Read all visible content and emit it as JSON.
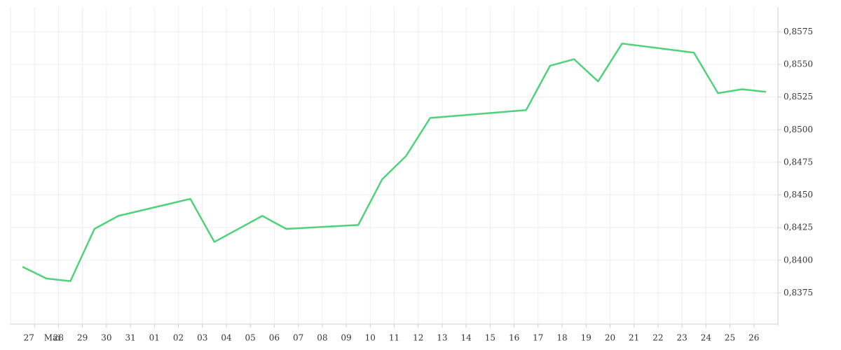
{
  "chart_data": {
    "type": "line",
    "categories": [
      null,
      "27",
      "28",
      "29",
      "30",
      "31",
      "01",
      "02",
      "03",
      "04",
      "05",
      "06",
      "07",
      "08",
      "09",
      "10",
      "11",
      "12",
      "13",
      "14",
      "15",
      "16",
      "17",
      "18",
      "19",
      "20",
      "21",
      "22",
      "23",
      "24",
      "25",
      "26"
    ],
    "month_label": "Mai",
    "series": [
      {
        "color": "#4fd37a",
        "values": [
          0.8395,
          0.8386,
          0.8384,
          0.8424,
          0.8434,
          null,
          null,
          0.8447,
          0.8414,
          null,
          0.8434,
          0.8424,
          null,
          null,
          0.8427,
          0.8462,
          0.848,
          0.8509,
          null,
          null,
          null,
          0.8515,
          0.8549,
          0.8554,
          0.8537,
          0.8566,
          null,
          null,
          0.8559,
          0.8528,
          0.8531,
          0.8529
        ]
      }
    ],
    "connect_gaps": true,
    "ylim": [
      0.835,
      0.8594
    ],
    "yticks": [
      {
        "value": 0.8375,
        "label": "0,8375"
      },
      {
        "value": 0.84,
        "label": "0,8400"
      },
      {
        "value": 0.8425,
        "label": "0,8425"
      },
      {
        "value": 0.845,
        "label": "0,8450"
      },
      {
        "value": 0.8475,
        "label": "0,8475"
      },
      {
        "value": 0.85,
        "label": "0,8500"
      },
      {
        "value": 0.8525,
        "label": "0,8525"
      },
      {
        "value": 0.855,
        "label": "0,8550"
      },
      {
        "value": 0.8575,
        "label": "0,8575"
      }
    ],
    "grid": true
  }
}
